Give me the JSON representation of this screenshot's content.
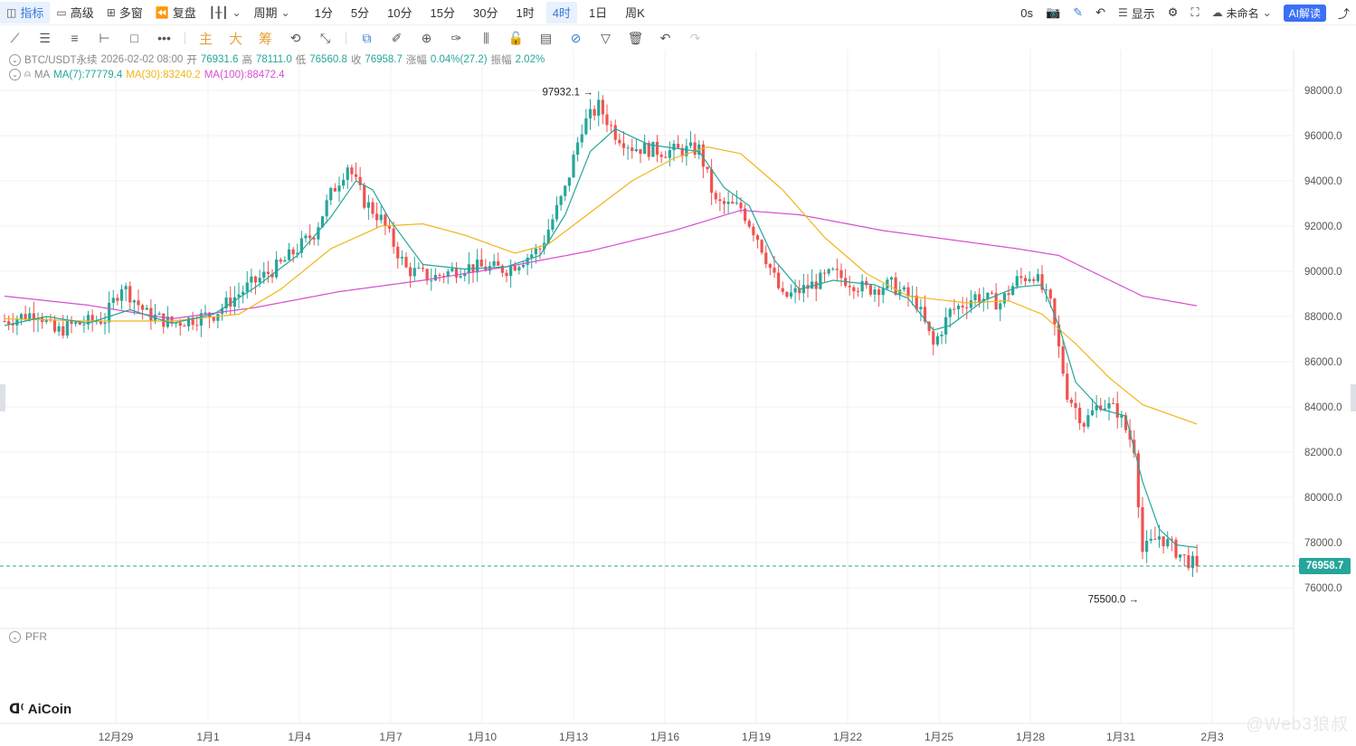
{
  "toolbar": {
    "indicators": "指标",
    "advanced": "高级",
    "multi_window": "多窗",
    "replay": "复盘",
    "period": "周期",
    "intervals": [
      "1分",
      "5分",
      "10分",
      "15分",
      "30分",
      "1时",
      "4时",
      "1日",
      "周K"
    ],
    "active_interval": "4时",
    "countdown": "0s",
    "display": "显示",
    "layout_name": "未命名",
    "ai_read": "AI解读"
  },
  "draw_tools": {
    "main_char": "主",
    "big_char": "大",
    "chip_char": "筹"
  },
  "info": {
    "symbol": "BTC/USDT永续",
    "datetime": "2026-02-02 08:00",
    "open_label": "开",
    "open": "76931.6",
    "high_label": "高",
    "high": "78111.0",
    "low_label": "低",
    "low": "76560.8",
    "close_label": "收",
    "close": "76958.7",
    "change_label": "涨幅",
    "change": "0.04%(27.2)",
    "amp_label": "振幅",
    "amp": "2.02%",
    "ma_label": "MA",
    "ma7": "MA(7):77779.4",
    "ma30": "MA(30):83240.2",
    "ma100": "MA(100):88472.4"
  },
  "colors": {
    "up": "#26a69a",
    "down": "#ef5350",
    "ma7": "#26a69a",
    "ma30": "#f2b51c",
    "ma100": "#d64fd0",
    "grid": "#f0f1f3",
    "price_line": "#26a69a"
  },
  "current_price": "76958.7",
  "annotations": {
    "high_label": "97932.1",
    "low_label": "75500.0"
  },
  "sub_indicator": "PFR",
  "brand": "AiCoin",
  "watermark": "@Web3狼叔",
  "chart_data": {
    "type": "candlestick",
    "interval": "4h",
    "y_ticks": [
      98000,
      96000,
      94000,
      92000,
      90000,
      88000,
      86000,
      84000,
      82000,
      80000,
      78000,
      76000
    ],
    "ylim": [
      75000,
      99500
    ],
    "x_ticks": [
      "12月29",
      "1月1",
      "1月4",
      "1月7",
      "1月10",
      "1月13",
      "1月16",
      "1月19",
      "1月22",
      "1月25",
      "1月28",
      "1月31",
      "2月3"
    ],
    "high_marker": 97932.1,
    "low_marker": 75500.0,
    "current": 76958.7,
    "waypoints": [
      [
        0,
        87800
      ],
      [
        8,
        88200
      ],
      [
        12,
        87300
      ],
      [
        16,
        87600
      ],
      [
        24,
        87900
      ],
      [
        28,
        89400
      ],
      [
        34,
        88100
      ],
      [
        40,
        87700
      ],
      [
        50,
        88100
      ],
      [
        58,
        89300
      ],
      [
        66,
        90300
      ],
      [
        74,
        91700
      ],
      [
        78,
        93400
      ],
      [
        82,
        94700
      ],
      [
        86,
        93100
      ],
      [
        90,
        92300
      ],
      [
        96,
        90100
      ],
      [
        102,
        89700
      ],
      [
        110,
        90200
      ],
      [
        120,
        90100
      ],
      [
        128,
        91000
      ],
      [
        134,
        93600
      ],
      [
        138,
        96400
      ],
      [
        142,
        97300
      ],
      [
        146,
        96100
      ],
      [
        150,
        95500
      ],
      [
        158,
        95300
      ],
      [
        166,
        95400
      ],
      [
        170,
        93000
      ],
      [
        176,
        92800
      ],
      [
        180,
        91500
      ],
      [
        186,
        88800
      ],
      [
        192,
        89300
      ],
      [
        198,
        89900
      ],
      [
        206,
        89200
      ],
      [
        212,
        89400
      ],
      [
        218,
        88600
      ],
      [
        222,
        86700
      ],
      [
        226,
        88200
      ],
      [
        232,
        88900
      ],
      [
        238,
        88600
      ],
      [
        242,
        89600
      ],
      [
        246,
        89900
      ],
      [
        250,
        88500
      ],
      [
        254,
        84600
      ],
      [
        258,
        83300
      ],
      [
        262,
        84200
      ],
      [
        266,
        83800
      ],
      [
        270,
        82200
      ],
      [
        272,
        77600
      ],
      [
        276,
        78300
      ],
      [
        282,
        77300
      ],
      [
        285,
        76958.7
      ]
    ],
    "ma7": [
      [
        0,
        87600
      ],
      [
        10,
        88000
      ],
      [
        20,
        87700
      ],
      [
        30,
        88300
      ],
      [
        40,
        87700
      ],
      [
        50,
        88100
      ],
      [
        60,
        89300
      ],
      [
        70,
        90700
      ],
      [
        78,
        92400
      ],
      [
        84,
        94000
      ],
      [
        88,
        93600
      ],
      [
        92,
        92300
      ],
      [
        100,
        90300
      ],
      [
        110,
        90100
      ],
      [
        120,
        90200
      ],
      [
        128,
        90700
      ],
      [
        134,
        92500
      ],
      [
        140,
        95300
      ],
      [
        146,
        96300
      ],
      [
        154,
        95600
      ],
      [
        166,
        95300
      ],
      [
        172,
        93700
      ],
      [
        178,
        92900
      ],
      [
        184,
        90500
      ],
      [
        190,
        89200
      ],
      [
        198,
        89600
      ],
      [
        208,
        89400
      ],
      [
        216,
        88800
      ],
      [
        222,
        87400
      ],
      [
        226,
        87600
      ],
      [
        234,
        88700
      ],
      [
        242,
        89300
      ],
      [
        248,
        89400
      ],
      [
        252,
        87600
      ],
      [
        256,
        85100
      ],
      [
        262,
        83900
      ],
      [
        268,
        83600
      ],
      [
        272,
        80700
      ],
      [
        276,
        78600
      ],
      [
        280,
        77900
      ],
      [
        285,
        77779
      ]
    ],
    "ma30": [
      [
        0,
        87900
      ],
      [
        20,
        87800
      ],
      [
        40,
        87800
      ],
      [
        56,
        88100
      ],
      [
        66,
        89200
      ],
      [
        78,
        91000
      ],
      [
        90,
        92000
      ],
      [
        100,
        92100
      ],
      [
        110,
        91600
      ],
      [
        122,
        90800
      ],
      [
        130,
        91200
      ],
      [
        140,
        92600
      ],
      [
        150,
        94000
      ],
      [
        160,
        95000
      ],
      [
        168,
        95500
      ],
      [
        176,
        95200
      ],
      [
        186,
        93600
      ],
      [
        196,
        91500
      ],
      [
        206,
        89900
      ],
      [
        216,
        88900
      ],
      [
        230,
        88600
      ],
      [
        240,
        88700
      ],
      [
        248,
        88100
      ],
      [
        256,
        86800
      ],
      [
        264,
        85300
      ],
      [
        272,
        84100
      ],
      [
        285,
        83240
      ]
    ],
    "ma100": [
      [
        0,
        88900
      ],
      [
        20,
        88500
      ],
      [
        40,
        87900
      ],
      [
        60,
        88400
      ],
      [
        80,
        89100
      ],
      [
        100,
        89600
      ],
      [
        120,
        90200
      ],
      [
        140,
        90900
      ],
      [
        160,
        91800
      ],
      [
        176,
        92700
      ],
      [
        190,
        92500
      ],
      [
        210,
        91800
      ],
      [
        230,
        91300
      ],
      [
        242,
        91000
      ],
      [
        252,
        90700
      ],
      [
        262,
        89800
      ],
      [
        272,
        88900
      ],
      [
        285,
        88472
      ]
    ]
  }
}
